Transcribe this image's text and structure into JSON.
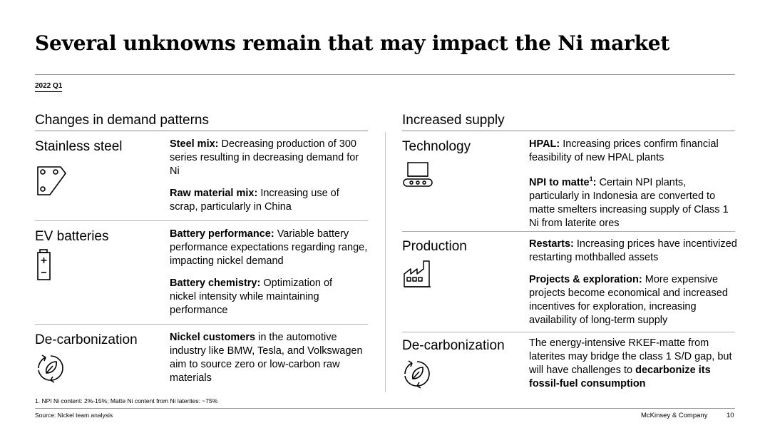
{
  "title": "Several unknowns remain that may impact the Ni market",
  "period": "2022 Q1",
  "left": {
    "header": "Changes in demand patterns",
    "sections": [
      {
        "category": "Stainless steel",
        "icon": "pipe-fitting-icon",
        "items": [
          {
            "bold": "Steel mix:",
            "text": " Decreasing production of 300 series resulting in decreasing demand for Ni"
          },
          {
            "bold": "Raw material mix:",
            "text": " Increasing use of scrap, particularly in China"
          }
        ]
      },
      {
        "category": "EV batteries",
        "icon": "battery-icon",
        "items": [
          {
            "bold": "Battery performance:",
            "text": " Variable battery performance expectations regarding range, impacting nickel demand"
          },
          {
            "bold": "Battery chemistry:",
            "text": " Optimization of nickel intensity while maintaining performance"
          }
        ]
      },
      {
        "category": "De-carbonization",
        "icon": "recycle-leaf-icon",
        "items": [
          {
            "bold": "Nickel customers",
            "text": " in the automotive industry like BMW, Tesla, and Volkswagen aim to source zero or low-carbon raw materials"
          }
        ]
      }
    ]
  },
  "right": {
    "header": "Increased supply",
    "sections": [
      {
        "category": "Technology",
        "icon": "conveyor-icon",
        "items": [
          {
            "bold": "HPAL:",
            "text": " Increasing prices confirm financial feasibility of new HPAL plants"
          },
          {
            "bold": "NPI to matte",
            "sup": "1",
            "bold2": ":",
            "text": " Certain NPI plants, particularly in Indonesia are converted to matte smelters increasing supply of Class 1 Ni from laterite ores"
          }
        ]
      },
      {
        "category": "Production",
        "icon": "factory-icon",
        "items": [
          {
            "bold": "Restarts:",
            "text": " Increasing prices have incentivized restarting mothballed assets"
          },
          {
            "bold": "Projects & exploration:",
            "text": " More expensive projects become economical and increased incentives for exploration, increasing availability of long-term supply"
          }
        ]
      },
      {
        "category": "De-carbonization",
        "icon": "recycle-leaf-icon",
        "items": [
          {
            "text": "The energy-intensive RKEF-matte from laterites may bridge the class 1 S/D gap, but will have challenges to ",
            "bold_end": "decarbonize its fossil-fuel consumption"
          }
        ]
      }
    ]
  },
  "footnote": "1.   NPI Ni content: 2%-15%; Matte Ni content from Ni laterites: ~75%",
  "source": "Source: Nickel team analysis",
  "company": "McKinsey & Company",
  "page_number": "10"
}
